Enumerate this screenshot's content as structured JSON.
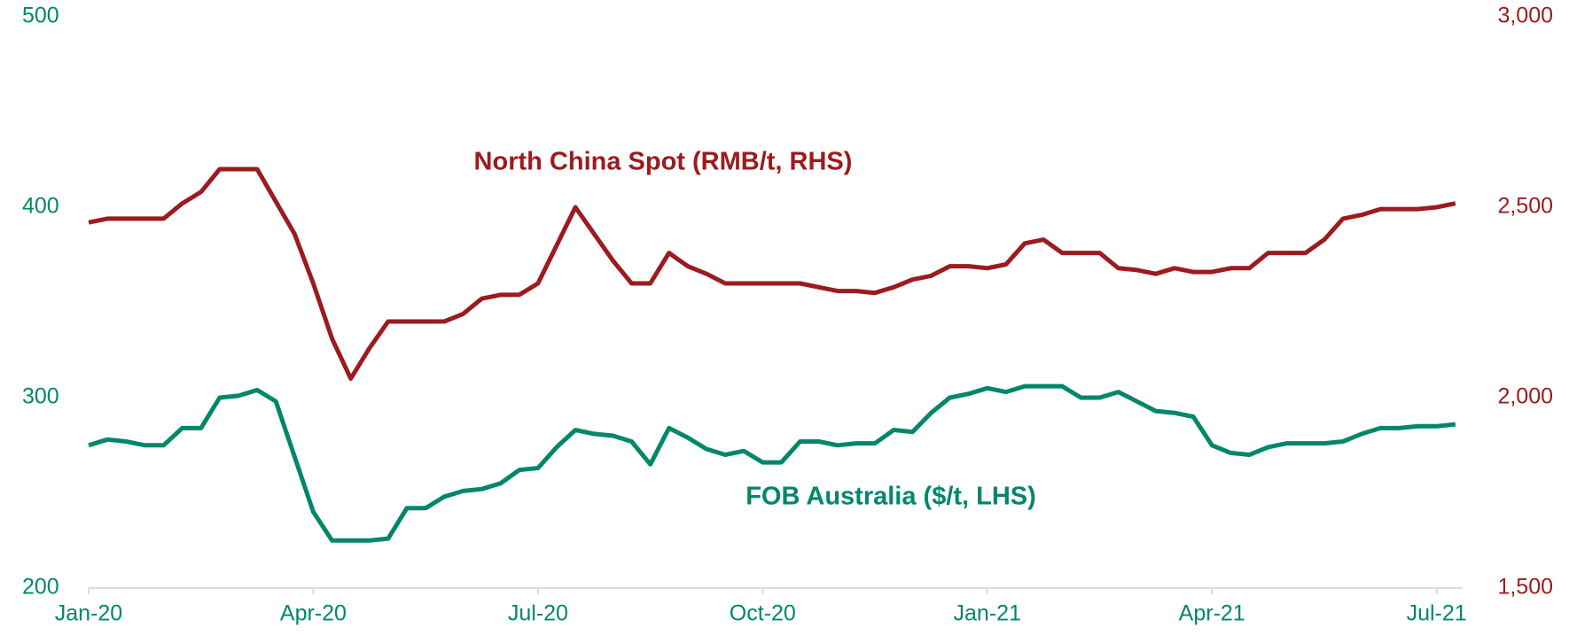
{
  "chart_data": {
    "type": "line",
    "categories": [
      "Jan-20",
      null,
      null,
      null,
      null,
      null,
      null,
      null,
      null,
      null,
      null,
      null,
      "Apr-20",
      null,
      null,
      null,
      null,
      null,
      null,
      null,
      null,
      null,
      null,
      null,
      "Jul-20",
      null,
      null,
      null,
      null,
      null,
      null,
      null,
      null,
      null,
      null,
      null,
      "Oct-20",
      null,
      null,
      null,
      null,
      null,
      null,
      null,
      null,
      null,
      null,
      null,
      "Jan-21",
      null,
      null,
      null,
      null,
      null,
      null,
      null,
      null,
      null,
      null,
      null,
      "Apr-21",
      null,
      null,
      null,
      null,
      null,
      null,
      null,
      null,
      null,
      null,
      null,
      "Jul-21",
      null
    ],
    "series": [
      {
        "name": "North China Spot (RMB/t, RHS)",
        "color": "#9b1b1e",
        "axis": "y2",
        "values": [
          2460,
          2470,
          2470,
          2470,
          2470,
          2510,
          2540,
          2600,
          2600,
          2600,
          2515,
          2430,
          2300,
          2155,
          2050,
          2130,
          2200,
          2200,
          2200,
          2200,
          2220,
          2260,
          2270,
          2270,
          2300,
          2400,
          2500,
          2430,
          2360,
          2300,
          2300,
          2380,
          2345,
          2325,
          2300,
          2300,
          2300,
          2300,
          2300,
          2290,
          2280,
          2280,
          2275,
          2290,
          2310,
          2320,
          2345,
          2345,
          2340,
          2350,
          2405,
          2415,
          2380,
          2380,
          2380,
          2340,
          2335,
          2325,
          2340,
          2330,
          2330,
          2340,
          2340,
          2380,
          2380,
          2380,
          2415,
          2470,
          2480,
          2495,
          2495,
          2495,
          2500,
          2510
        ]
      },
      {
        "name": "FOB Australia ($/t, LHS)",
        "color": "#00876a",
        "axis": "y",
        "values": [
          275,
          278,
          277,
          275,
          275,
          284,
          284,
          300,
          301,
          304,
          298,
          269,
          240,
          225,
          225,
          225,
          226,
          242,
          242,
          248,
          251,
          252,
          255,
          262,
          263,
          274,
          283,
          281,
          280,
          277,
          265,
          284,
          279,
          273,
          270,
          272,
          266,
          266,
          277,
          277,
          275,
          276,
          276,
          283,
          282,
          292,
          300,
          302,
          305,
          303,
          306,
          306,
          306,
          300,
          300,
          303,
          298,
          293,
          292,
          290,
          275,
          271,
          270,
          274,
          276,
          276,
          276,
          277,
          281,
          284,
          284,
          285,
          285,
          286
        ]
      }
    ],
    "ylim": [
      200,
      500
    ],
    "yticks": [
      200,
      300,
      400,
      500
    ],
    "y2lim": [
      1500,
      3000
    ],
    "y2ticks": [
      {
        "value": 1500,
        "label": "1,500"
      },
      {
        "value": 2000,
        "label": "2,000"
      },
      {
        "value": 2500,
        "label": "2,500"
      },
      {
        "value": 3000,
        "label": "3,000"
      }
    ],
    "grid": false
  }
}
